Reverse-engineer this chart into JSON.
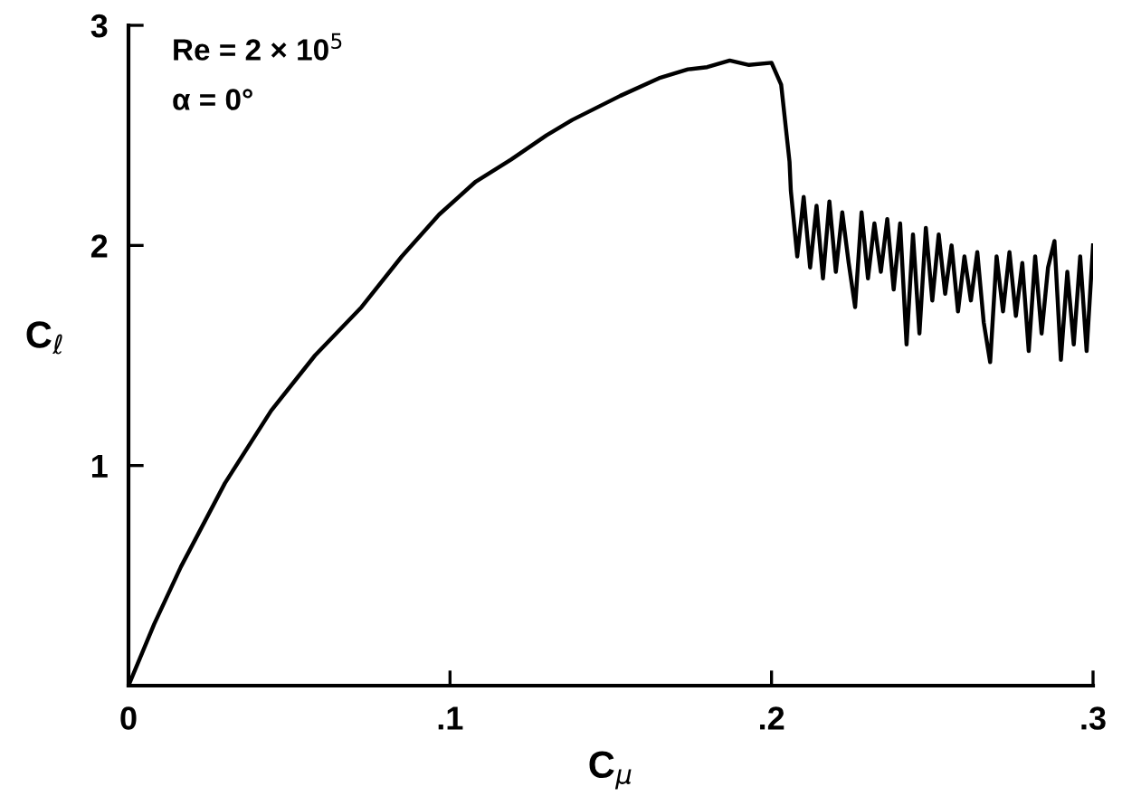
{
  "chart_data": {
    "type": "line",
    "xlabel": "C$_{μ}$",
    "ylabel": "C$_{ℓ}$",
    "annotations": [
      "Re = 2 × 10$^{5}$",
      "α = 0°"
    ],
    "xlim": [
      0,
      0.3
    ],
    "ylim": [
      0,
      3
    ],
    "xticks": [
      0,
      {
        "value": 0.1,
        "label": ".1"
      },
      {
        "value": 0.2,
        "label": ".2"
      },
      {
        "value": 0.3,
        "label": ".3"
      }
    ],
    "yticks": [
      {
        "value": 0,
        "label": null
      },
      1,
      2,
      3
    ],
    "grid": false,
    "marker": "none",
    "line_style": "solid",
    "series": [
      {
        "color": "#000000",
        "x": [
          0,
          0.008,
          0.0163,
          0.03,
          0.0444,
          0.058,
          0.0725,
          0.085,
          0.0966,
          0.108,
          0.119,
          0.13,
          0.138,
          0.153,
          0.165,
          0.174,
          0.18,
          0.187,
          0.193,
          0.2,
          0.203,
          0.2056,
          0.206,
          0.208,
          0.21,
          0.212,
          0.214,
          0.216,
          0.218,
          0.22,
          0.222,
          0.224,
          0.226,
          0.228,
          0.23,
          0.232,
          0.234,
          0.236,
          0.238,
          0.24,
          0.242,
          0.244,
          0.246,
          0.248,
          0.25,
          0.252,
          0.254,
          0.256,
          0.258,
          0.26,
          0.262,
          0.264,
          0.266,
          0.268,
          0.27,
          0.272,
          0.274,
          0.276,
          0.278,
          0.28,
          0.282,
          0.284,
          0.286,
          0.288,
          0.29,
          0.292,
          0.294,
          0.296,
          0.298,
          0.3
        ],
        "values": [
          0,
          0.28,
          0.54,
          0.92,
          1.25,
          1.5,
          1.72,
          1.95,
          2.14,
          2.29,
          2.39,
          2.5,
          2.57,
          2.68,
          2.76,
          2.8,
          2.81,
          2.84,
          2.82,
          2.83,
          2.73,
          2.38,
          2.25,
          1.95,
          2.22,
          1.9,
          2.18,
          1.85,
          2.2,
          1.88,
          2.15,
          1.92,
          1.72,
          2.15,
          1.85,
          2.1,
          1.88,
          2.12,
          1.8,
          2.1,
          1.55,
          2.05,
          1.6,
          2.08,
          1.75,
          2.05,
          1.78,
          2.0,
          1.7,
          1.95,
          1.75,
          1.97,
          1.65,
          1.47,
          1.95,
          1.7,
          1.97,
          1.68,
          1.92,
          1.52,
          1.95,
          1.6,
          1.9,
          2.02,
          1.48,
          1.88,
          1.55,
          1.95,
          1.52,
          2.0
        ]
      }
    ]
  }
}
